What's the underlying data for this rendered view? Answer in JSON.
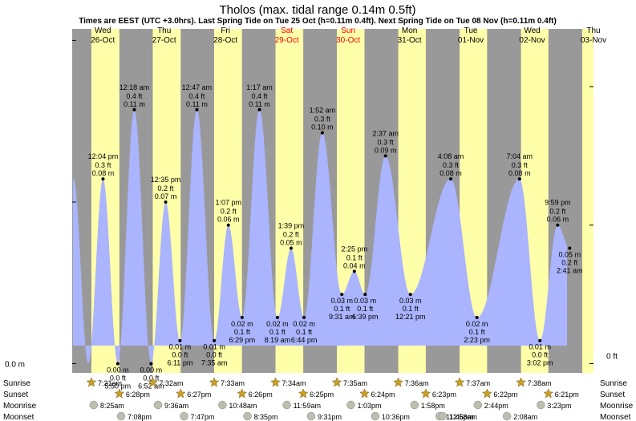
{
  "chart_data": {
    "type": "area",
    "title": "Tholos (max. tidal range 0.14m 0.5ft)",
    "subtitle": "Times are EEST (UTC +3.0hrs). Last Spring Tide on Tue 25 Oct (h=0.11m 0.4ft). Next Spring Tide on Tue 08 Nov (h=0.11m 0.4ft)",
    "left_axis_label": "0.0 m",
    "right_axis_label": "0 ft",
    "x_start": "2022-10-26 00:00",
    "x_end": "2022-11-03 12:00",
    "ylim_m": [
      -0.004,
      0.145
    ],
    "days": [
      {
        "dow": "Wed",
        "date": "26-Oct",
        "sunrise": "7:31am",
        "sunset": "6:28pm",
        "moonrise": "8:25am",
        "moonset": "7:08pm"
      },
      {
        "dow": "Thu",
        "date": "27-Oct",
        "sunrise": "7:32am",
        "sunset": "6:27pm",
        "moonrise": "9:36am",
        "moonset": "7:47pm"
      },
      {
        "dow": "Fri",
        "date": "28-Oct",
        "sunrise": "7:33am",
        "sunset": "6:26pm",
        "moonrise": "10:48am",
        "moonset": "8:35pm"
      },
      {
        "dow": "Sat",
        "date": "29-Oct",
        "sunrise": "7:34am",
        "sunset": "6:25pm",
        "moonrise": "11:59am",
        "moonset": "9:31pm"
      },
      {
        "dow": "Sun",
        "date": "30-Oct",
        "sunrise": "7:35am",
        "sunset": "6:24pm",
        "moonrise": "1:03pm",
        "moonset": "10:36pm"
      },
      {
        "dow": "Mon",
        "date": "31-Oct",
        "sunrise": "7:36am",
        "sunset": "6:23pm",
        "moonrise": "1:58pm",
        "moonset": "11:46pm"
      },
      {
        "dow": "Tue",
        "date": "01-Nov",
        "sunrise": "7:37am",
        "sunset": "6:22pm",
        "moonrise": "2:44pm",
        "moonset": "12:58am"
      },
      {
        "dow": "Wed",
        "date": "02-Nov",
        "sunrise": "7:38am",
        "sunset": "6:21pm",
        "moonrise": "3:23pm",
        "moonset": "2:08am"
      },
      {
        "dow": "Thu",
        "date": "03-Nov"
      }
    ],
    "tides": [
      {
        "time": "2022-10-26 12:04",
        "label": "12:04 pm",
        "m": 0.08,
        "m_label": "0.08 m",
        "ft_label": "0.3 ft",
        "type": "high"
      },
      {
        "time": "2022-10-26 17:50",
        "label": "5:50 pm",
        "m": 0.0,
        "m_label": "0.00 m",
        "ft_label": "0.0 ft",
        "type": "low"
      },
      {
        "time": "2022-10-27 00:18",
        "label": "12:18 am",
        "m": 0.11,
        "m_label": "0.11 m",
        "ft_label": "0.4 ft",
        "type": "high"
      },
      {
        "time": "2022-10-27 06:52",
        "label": "6:52 am",
        "m": 0.0,
        "m_label": "0.00 m",
        "ft_label": "0.0 ft",
        "type": "low"
      },
      {
        "time": "2022-10-27 12:35",
        "label": "12:35 pm",
        "m": 0.07,
        "m_label": "0.07 m",
        "ft_label": "0.2 ft",
        "type": "high"
      },
      {
        "time": "2022-10-27 18:11",
        "label": "6:11 pm",
        "m": 0.01,
        "m_label": "0.01 m",
        "ft_label": "0.0 ft",
        "type": "low"
      },
      {
        "time": "2022-10-28 00:47",
        "label": "12:47 am",
        "m": 0.11,
        "m_label": "0.11 m",
        "ft_label": "0.4 ft",
        "type": "high"
      },
      {
        "time": "2022-10-28 07:35",
        "label": "7:35 am",
        "m": 0.01,
        "m_label": "0.01 m",
        "ft_label": "0.0 ft",
        "type": "low"
      },
      {
        "time": "2022-10-28 13:07",
        "label": "1:07 pm",
        "m": 0.06,
        "m_label": "0.06 m",
        "ft_label": "0.2 ft",
        "type": "high"
      },
      {
        "time": "2022-10-28 18:29",
        "label": "6:29 pm",
        "m": 0.02,
        "m_label": "0.02 m",
        "ft_label": "0.1 ft",
        "type": "low"
      },
      {
        "time": "2022-10-29 01:17",
        "label": "1:17 am",
        "m": 0.11,
        "m_label": "0.11 m",
        "ft_label": "0.4 ft",
        "type": "high"
      },
      {
        "time": "2022-10-29 08:19",
        "label": "8:19 am",
        "m": 0.02,
        "m_label": "0.02 m",
        "ft_label": "0.1 ft",
        "type": "low"
      },
      {
        "time": "2022-10-29 13:39",
        "label": "1:39 pm",
        "m": 0.05,
        "m_label": "0.05 m",
        "ft_label": "0.2 ft",
        "type": "high"
      },
      {
        "time": "2022-10-29 18:44",
        "label": "6:44 pm",
        "m": 0.02,
        "m_label": "0.02 m",
        "ft_label": "0.1 ft",
        "type": "low"
      },
      {
        "time": "2022-10-30 01:52",
        "label": "1:52 am",
        "m": 0.1,
        "m_label": "0.10 m",
        "ft_label": "0.3 ft",
        "type": "high"
      },
      {
        "time": "2022-10-30 09:31",
        "label": "9:31 am",
        "m": 0.03,
        "m_label": "0.03 m",
        "ft_label": "0.1 ft",
        "type": "low"
      },
      {
        "time": "2022-10-30 14:25",
        "label": "2:25 pm",
        "m": 0.04,
        "m_label": "0.04 m",
        "ft_label": "0.1 ft",
        "type": "high"
      },
      {
        "time": "2022-10-30 18:39",
        "label": "6:39 pm",
        "m": 0.03,
        "m_label": "0.03 m",
        "ft_label": "0.1 ft",
        "type": "low"
      },
      {
        "time": "2022-10-31 02:37",
        "label": "2:37 am",
        "m": 0.09,
        "m_label": "0.09 m",
        "ft_label": "0.3 ft",
        "type": "high"
      },
      {
        "time": "2022-10-31 12:21",
        "label": "12:21 pm",
        "m": 0.03,
        "m_label": "0.03 m",
        "ft_label": "0.1 ft",
        "type": "low"
      },
      {
        "time": "2022-11-01 04:08",
        "label": "4:08 am",
        "m": 0.08,
        "m_label": "0.08 m",
        "ft_label": "0.3 ft",
        "type": "high"
      },
      {
        "time": "2022-11-01 14:23",
        "label": "2:23 pm",
        "m": 0.02,
        "m_label": "0.02 m",
        "ft_label": "0.1 ft",
        "type": "low"
      },
      {
        "time": "2022-11-02 07:04",
        "label": "7:04 am",
        "m": 0.08,
        "m_label": "0.08 m",
        "ft_label": "0.3 ft",
        "type": "high"
      },
      {
        "time": "2022-11-02 15:02",
        "label": "3:02 pm",
        "m": 0.01,
        "m_label": "0.01 m",
        "ft_label": "0.0 ft",
        "type": "low"
      },
      {
        "time": "2022-11-02 21:59",
        "label": "9:59 pm",
        "m": 0.06,
        "m_label": "0.06 m",
        "ft_label": "0.2 ft",
        "type": "high"
      },
      {
        "time": "2022-11-03 02:41",
        "label": "2:41 am",
        "m": 0.05,
        "m_label": "0.05 m",
        "ft_label": "0.2 ft",
        "type": "low"
      }
    ],
    "rows": {
      "sunrise": "Sunrise",
      "sunset": "Sunset",
      "moonrise": "Moonrise",
      "moonset": "Moonset"
    },
    "colors": {
      "night": "#999999",
      "day": "#ffffaa",
      "water": "#aab4ff",
      "weekend_date": "#ff0000",
      "weekday_date": "#000000",
      "sun_icon": "#c8a028",
      "moon_icon": "#bdbdb0"
    }
  }
}
